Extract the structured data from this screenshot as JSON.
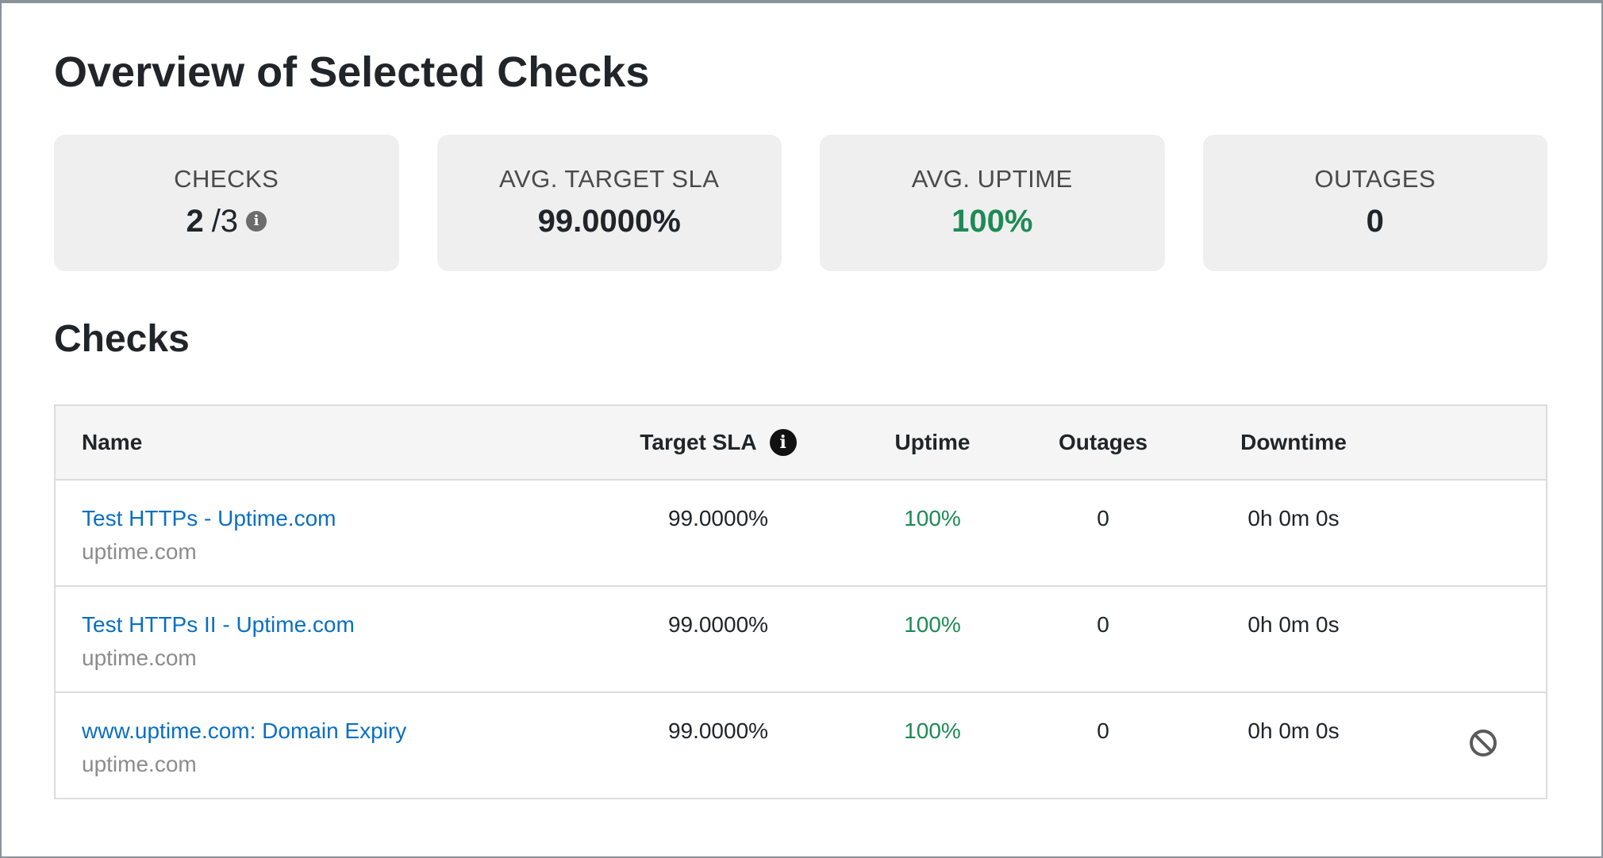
{
  "page": {
    "title": "Overview of Selected Checks",
    "section_title": "Checks"
  },
  "cards": {
    "checks": {
      "label": "CHECKS",
      "value": "2",
      "total": "/3"
    },
    "avg_target_sla": {
      "label": "AVG. TARGET SLA",
      "value": "99.0000%"
    },
    "avg_uptime": {
      "label": "AVG. UPTIME",
      "value": "100%"
    },
    "outages": {
      "label": "OUTAGES",
      "value": "0"
    }
  },
  "table": {
    "headers": {
      "name": "Name",
      "target_sla": "Target SLA",
      "uptime": "Uptime",
      "outages": "Outages",
      "downtime": "Downtime"
    },
    "rows": [
      {
        "name": "Test HTTPs - Uptime.com",
        "domain": "uptime.com",
        "target_sla": "99.0000%",
        "uptime": "100%",
        "outages": "0",
        "downtime": "0h 0m 0s"
      },
      {
        "name": "Test HTTPs II - Uptime.com",
        "domain": "uptime.com",
        "target_sla": "99.0000%",
        "uptime": "100%",
        "outages": "0",
        "downtime": "0h 0m 0s"
      },
      {
        "name": "www.uptime.com: Domain Expiry",
        "domain": "uptime.com",
        "target_sla": "99.0000%",
        "uptime": "100%",
        "outages": "0",
        "downtime": "0h 0m 0s",
        "action_icon": "ban-icon"
      }
    ]
  },
  "colors": {
    "link": "#0a6fc2",
    "success": "#1e8a55",
    "card_bg": "#efefef",
    "header_bg": "#f5f5f5"
  }
}
